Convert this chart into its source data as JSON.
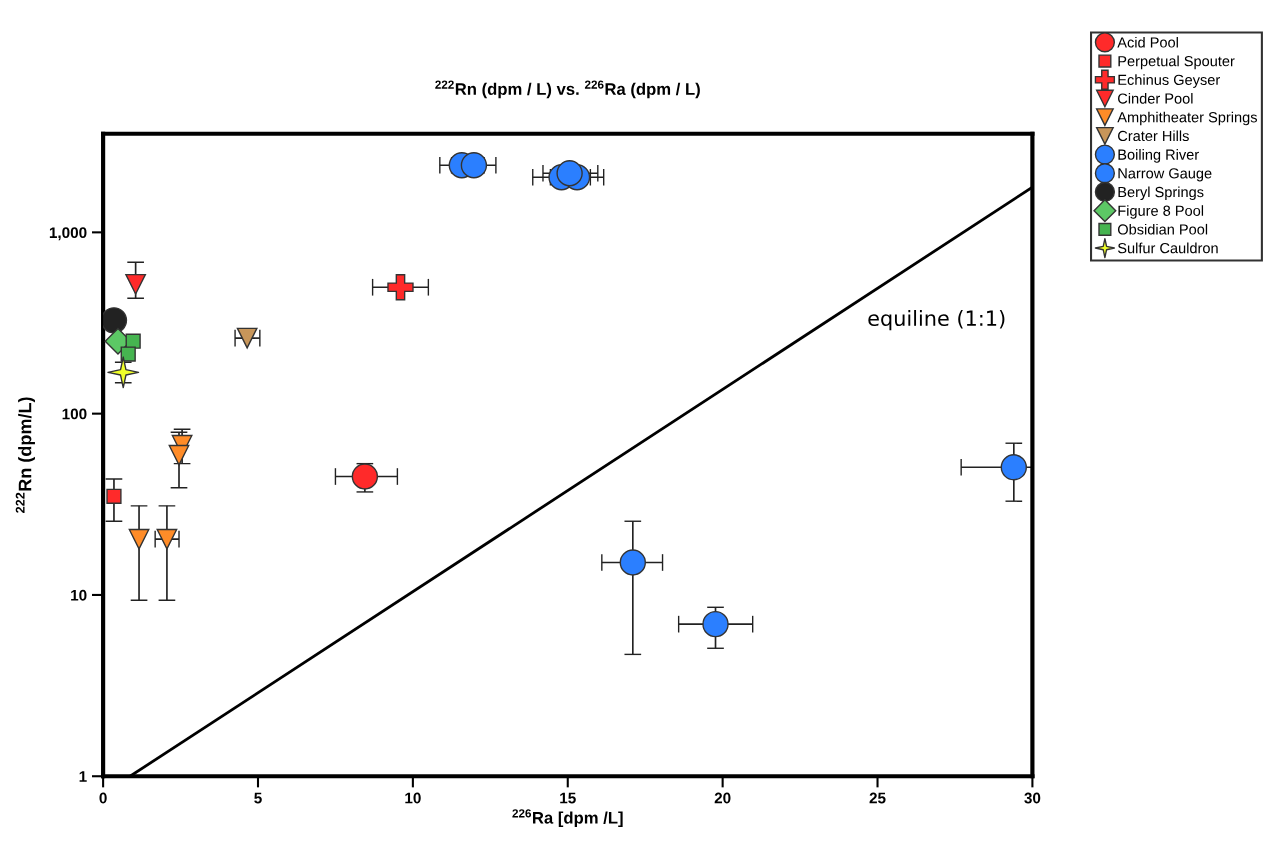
{
  "chart_data": {
    "type": "scatter",
    "title": "$^{222}$Rn (dpm / L) vs. $^{226}$Ra (dpm / L)",
    "xlabel": "$^{226}$Ra [dpm /L]",
    "ylabel": "$^{222}$Rn (dpm/L)",
    "log": "y",
    "xlim": [
      0,
      30
    ],
    "ylim": [
      1,
      3500
    ],
    "xticks": [
      0,
      5,
      10,
      15,
      20,
      25,
      30
    ],
    "yticks": [
      1,
      10,
      100,
      {
        "value": 1000,
        "label": "1,000"
      }
    ],
    "grid": false,
    "legend": "top right",
    "annotations": [
      "equiline (1:1)"
    ],
    "series": [
      {
        "name": "Acid Pool",
        "color": "#ff2a2a",
        "marker": "circle",
        "x": [
          8.45
        ],
        "values": [
          45
        ],
        "errors": [
          [
            37,
            53
          ]
        ],
        "xerrors": [
          [
            7.5,
            9.5
          ]
        ]
      },
      {
        "name": "Perpetual Spouter",
        "color": "#ff2a2a",
        "marker": "square",
        "x": [
          0.35
        ],
        "values": [
          35
        ],
        "errors": [
          [
            25.5,
            43.6
          ]
        ],
        "xerrors": [
          null
        ]
      },
      {
        "name": "Echinus Geyser",
        "color": "#ff2a2a",
        "marker": "cross",
        "x": [
          9.6
        ],
        "values": [
          498
        ],
        "errors": [
          null
        ],
        "xerrors": [
          [
            8.7,
            10.5
          ]
        ]
      },
      {
        "name": "Cinder Pool",
        "color": "#ff2a2a",
        "marker": "triangle",
        "x": [
          1.05
        ],
        "values": [
          517
        ],
        "errors": [
          [
            433,
            684
          ]
        ],
        "xerrors": [
          null
        ]
      },
      {
        "name": "Amphitheater Springs",
        "color": "#ff8c28",
        "marker": "triangle",
        "x": [
          2.55,
          2.45,
          1.16,
          2.06
        ],
        "values": [
          67,
          59,
          20.3,
          20.3
        ],
        "errors": [
          [
            53,
            82
          ],
          [
            39,
            79
          ],
          [
            9.35,
            31
          ],
          [
            9.35,
            31
          ]
        ],
        "xerrors": [
          null,
          null,
          null,
          [
            1.68,
            2.45
          ]
        ]
      },
      {
        "name": "Crater Hills",
        "color": "#c8965a",
        "marker": "triangle",
        "x": [
          4.65
        ],
        "values": [
          261
        ],
        "errors": [
          null
        ],
        "xerrors": [
          [
            4.26,
            5.06
          ]
        ]
      },
      {
        "name": "Boiling River",
        "color": "#2b7fff",
        "marker": "circle",
        "x": [
          11.58,
          11.97,
          14.8,
          15.3,
          15.06
        ],
        "values": [
          2345,
          2345,
          2014,
          2014,
          2118
        ],
        "errors": [
          null,
          null,
          null,
          null,
          null
        ],
        "xerrors": [
          [
            10.87,
            12.3
          ],
          [
            11.25,
            12.68
          ],
          [
            13.87,
            15.73
          ],
          [
            14.44,
            16.16
          ],
          [
            14.2,
            15.97
          ]
        ]
      },
      {
        "name": "Narrow Gauge",
        "color": "#2b7fff",
        "marker": "circle",
        "x": [
          17.1,
          19.77,
          29.4
        ],
        "values": [
          15.1,
          6.9,
          50.6
        ],
        "errors": [
          [
            4.7,
            25.5
          ],
          [
            5.08,
            8.55
          ],
          [
            32.9,
            68.7
          ]
        ],
        "xerrors": [
          [
            16.1,
            18.06
          ],
          [
            18.58,
            20.97
          ],
          [
            27.7,
            30
          ]
        ]
      },
      {
        "name": "Beryl Springs",
        "color": "#222222",
        "marker": "circle",
        "x": [
          0.35
        ],
        "values": [
          327
        ],
        "errors": [
          null
        ],
        "xerrors": [
          null
        ]
      },
      {
        "name": "Figure 8 Pool",
        "color": "#5cc865",
        "marker": "diamond",
        "x": [
          0.48
        ],
        "values": [
          251
        ],
        "errors": [
          null
        ],
        "xerrors": [
          null
        ]
      },
      {
        "name": "Obsidian Pool",
        "color": "#46b450",
        "marker": "square",
        "x": [
          0.97,
          0.81
        ],
        "values": [
          251,
          213
        ],
        "errors": [
          null,
          null
        ],
        "xerrors": [
          null,
          null
        ]
      },
      {
        "name": "Sulfur Cauldron",
        "color": "#f0ff28",
        "marker": "star",
        "x": [
          0.65
        ],
        "values": [
          169
        ],
        "errors": [
          [
            148,
            192
          ]
        ],
        "xerrors": [
          null
        ]
      },
      {
        "type": "line",
        "color": "#000000",
        "x": [
          0.87,
          30
        ],
        "values": [
          1,
          1774
        ]
      }
    ]
  }
}
